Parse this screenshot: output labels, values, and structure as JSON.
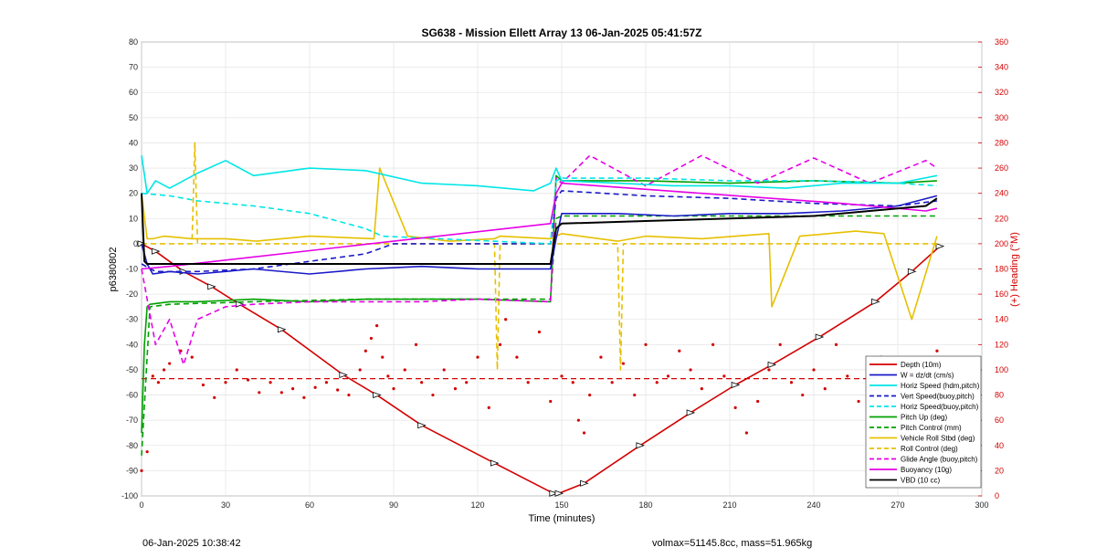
{
  "chart_data": {
    "type": "line",
    "title": "SG638 - Mission Ellett Array 13 06-Jan-2025 05:41:57Z",
    "xlabel": "Time (minutes)",
    "ylabel": "p6380802",
    "ylabel_right": "(+) Heading (°M)",
    "xlim": [
      0,
      300
    ],
    "ylim": [
      -100,
      80
    ],
    "ylim_right": [
      0,
      360
    ],
    "x_ticks": [
      "0",
      "30",
      "60",
      "90",
      "120",
      "150",
      "180",
      "210",
      "240",
      "270",
      "300"
    ],
    "y_ticks": [
      "80",
      "70",
      "60",
      "50",
      "40",
      "30",
      "20",
      "10",
      "0",
      "-10",
      "-20",
      "-30",
      "-40",
      "-50",
      "-60",
      "-70",
      "-80",
      "-90",
      "-100"
    ],
    "y_ticks_right": [
      "360",
      "340",
      "320",
      "300",
      "280",
      "260",
      "240",
      "220",
      "200",
      "180",
      "160",
      "140",
      "120",
      "100",
      "80",
      "60",
      "40",
      "20",
      "0"
    ],
    "grid": true,
    "legend_position": "bottom-right",
    "series": [
      {
        "name": "Depth (10m)",
        "color": "#d40000",
        "dash": "solid",
        "marker": "triangle",
        "x": [
          0,
          5,
          15,
          25,
          35,
          50,
          72,
          84,
          100,
          126,
          147,
          149,
          158,
          178,
          196,
          212,
          225,
          242,
          262,
          275,
          285
        ],
        "y": [
          0,
          -3,
          -11,
          -17,
          -24,
          -34,
          -52,
          -60,
          -72,
          -87,
          -99,
          -99,
          -95,
          -80,
          -67,
          -56,
          -48,
          -37,
          -23,
          -11,
          -1
        ]
      },
      {
        "name": "W = dz/dt (cm/s)",
        "color": "#1a1ac8",
        "dash": "solid",
        "x": [
          0,
          2,
          4,
          10,
          20,
          40,
          60,
          80,
          100,
          120,
          146,
          148,
          150,
          170,
          190,
          210,
          230,
          250,
          270,
          284
        ],
        "y": [
          0,
          -8,
          -12,
          -11,
          -12,
          -10,
          -12,
          -10,
          -9,
          -10,
          -10,
          2,
          12,
          12,
          11,
          12,
          12,
          13,
          15,
          19
        ]
      },
      {
        "name": "Horiz Speed (hdm,pitch)",
        "color": "#00e6e6",
        "dash": "solid",
        "x": [
          0,
          2,
          5,
          10,
          20,
          30,
          40,
          60,
          80,
          100,
          120,
          140,
          146,
          148,
          150,
          170,
          190,
          210,
          230,
          250,
          270,
          284
        ],
        "y": [
          35,
          20,
          25,
          22,
          28,
          33,
          27,
          30,
          29,
          24,
          23,
          21,
          24,
          30,
          25,
          24,
          23,
          23,
          22,
          24,
          24,
          27
        ]
      },
      {
        "name": "Vert Speed(buoy,pitch)",
        "color": "#1a1ac8",
        "dash": "dashed",
        "x": [
          0,
          5,
          20,
          40,
          60,
          80,
          90,
          146,
          148,
          150,
          180,
          210,
          240,
          270,
          284
        ],
        "y": [
          -8,
          -11,
          -11,
          -10,
          -7,
          -4,
          0,
          0,
          18,
          21,
          19,
          18,
          16,
          15,
          17
        ]
      },
      {
        "name": "Horiz Speed(buoy,pitch)",
        "color": "#00e6e6",
        "dash": "dashed",
        "x": [
          0,
          10,
          20,
          40,
          60,
          80,
          86,
          146,
          148,
          150,
          180,
          210,
          240,
          270,
          284
        ],
        "y": [
          20,
          19,
          17,
          15,
          12,
          6,
          3,
          0,
          25,
          26,
          26,
          25,
          25,
          24,
          23
        ]
      },
      {
        "name": "Pitch Up (deg)",
        "color": "#00a000",
        "dash": "solid",
        "x": [
          0,
          1,
          2,
          3,
          10,
          20,
          40,
          60,
          80,
          100,
          120,
          146,
          148,
          150,
          180,
          210,
          240,
          270,
          284
        ],
        "y": [
          -75,
          -40,
          -25,
          -24,
          -23,
          -23,
          -22,
          -23,
          -22,
          -22,
          -22,
          -23,
          27,
          25,
          25,
          24,
          25,
          24,
          25
        ]
      },
      {
        "name": "Pitch Control (mm)",
        "color": "#00a000",
        "dash": "dashed",
        "x": [
          0,
          3,
          10,
          40,
          80,
          120,
          146,
          148,
          150,
          180,
          210,
          240,
          270,
          284
        ],
        "y": [
          -84,
          -25,
          -24,
          -23,
          -22,
          -22,
          -22,
          10,
          11,
          11,
          11,
          11,
          11,
          11
        ]
      },
      {
        "name": "Vehicle Roll Stbd (deg)",
        "color": "#e6c000",
        "dash": "solid",
        "x": [
          0,
          2,
          4,
          8,
          18,
          26,
          30,
          41,
          60,
          83,
          85,
          95,
          110,
          126,
          128,
          146,
          150,
          170,
          180,
          200,
          224,
          225,
          235,
          255,
          265,
          275,
          284
        ],
        "y": [
          20,
          2,
          2,
          3,
          2,
          2,
          2,
          1,
          3,
          2,
          30,
          3,
          1,
          2,
          3,
          2,
          4,
          1,
          3,
          2,
          4,
          -25,
          3,
          5,
          4,
          -30,
          3
        ]
      },
      {
        "name": "Roll Control (deg)",
        "color": "#e6c000",
        "dash": "dashed",
        "x": [
          0,
          10,
          18,
          19,
          20,
          40,
          70,
          80,
          100,
          126,
          127,
          128,
          146,
          150,
          170,
          171,
          172,
          200,
          240,
          250,
          260,
          280,
          284
        ],
        "y": [
          0,
          0,
          0,
          40,
          0,
          0,
          0,
          0,
          0,
          0,
          -50,
          0,
          0,
          0,
          0,
          -50,
          0,
          0,
          0,
          0,
          0,
          0,
          0
        ]
      },
      {
        "name": "Glide Angle (buoy,pitch)",
        "color": "#e600e6",
        "dash": "dashed",
        "x": [
          0,
          5,
          10,
          15,
          20,
          30,
          40,
          60,
          80,
          100,
          120,
          146,
          148,
          150,
          160,
          180,
          200,
          220,
          240,
          260,
          280,
          284
        ],
        "y": [
          -10,
          -40,
          -30,
          -48,
          -30,
          -25,
          -24,
          -23,
          -23,
          -23,
          -22,
          -23,
          26,
          24,
          35,
          23,
          35,
          24,
          34,
          24,
          33,
          30
        ]
      },
      {
        "name": "Buoyancy (10g)",
        "color": "#e600e6",
        "dash": "solid",
        "x": [
          0,
          10,
          146,
          148,
          150,
          200,
          250,
          280,
          284
        ],
        "y": [
          -10,
          -9,
          8,
          20,
          24,
          20,
          16,
          13,
          14
        ]
      },
      {
        "name": "VBD (10 cc)",
        "color": "#000000",
        "dash": "solid",
        "x": [
          0,
          1,
          2,
          10,
          40,
          80,
          120,
          146,
          148,
          150,
          180,
          210,
          240,
          260,
          270,
          280,
          284
        ],
        "y": [
          20,
          -7,
          -8,
          -8,
          -8,
          -8,
          -8,
          -8,
          6,
          8,
          9,
          10,
          11,
          13,
          14,
          15,
          18
        ]
      }
    ],
    "heading_series": {
      "name": "Heading",
      "color": "#d40000",
      "axis": "right",
      "style": "dots",
      "reference_line": 93,
      "x": [
        0,
        2,
        4,
        6,
        8,
        10,
        14,
        18,
        22,
        26,
        30,
        34,
        38,
        42,
        46,
        50,
        54,
        58,
        62,
        66,
        70,
        74,
        78,
        80,
        82,
        84,
        86,
        88,
        90,
        94,
        98,
        100,
        104,
        108,
        112,
        116,
        120,
        124,
        128,
        130,
        134,
        138,
        142,
        146,
        150,
        154,
        156,
        158,
        160,
        164,
        168,
        172,
        176,
        180,
        184,
        188,
        192,
        196,
        200,
        204,
        208,
        212,
        216,
        220,
        224,
        228,
        232,
        236,
        240,
        244,
        248,
        252,
        256,
        260,
        264,
        268,
        272,
        276,
        280,
        284
      ],
      "y": [
        20,
        35,
        95,
        90,
        100,
        105,
        115,
        110,
        88,
        78,
        90,
        100,
        92,
        82,
        90,
        82,
        85,
        78,
        86,
        90,
        84,
        80,
        100,
        115,
        125,
        135,
        110,
        95,
        85,
        100,
        120,
        90,
        80,
        100,
        85,
        90,
        110,
        70,
        120,
        140,
        110,
        90,
        130,
        75,
        95,
        90,
        60,
        50,
        80,
        110,
        90,
        105,
        80,
        120,
        90,
        95,
        115,
        100,
        85,
        120,
        95,
        70,
        50,
        75,
        100,
        120,
        90,
        80,
        100,
        85,
        120,
        95,
        75,
        90,
        110,
        80,
        100,
        85,
        105,
        115
      ]
    }
  },
  "footer": {
    "date": "06-Jan-2025 10:38:42",
    "volmax": "volmax=51145.8cc, mass=51.965kg"
  }
}
